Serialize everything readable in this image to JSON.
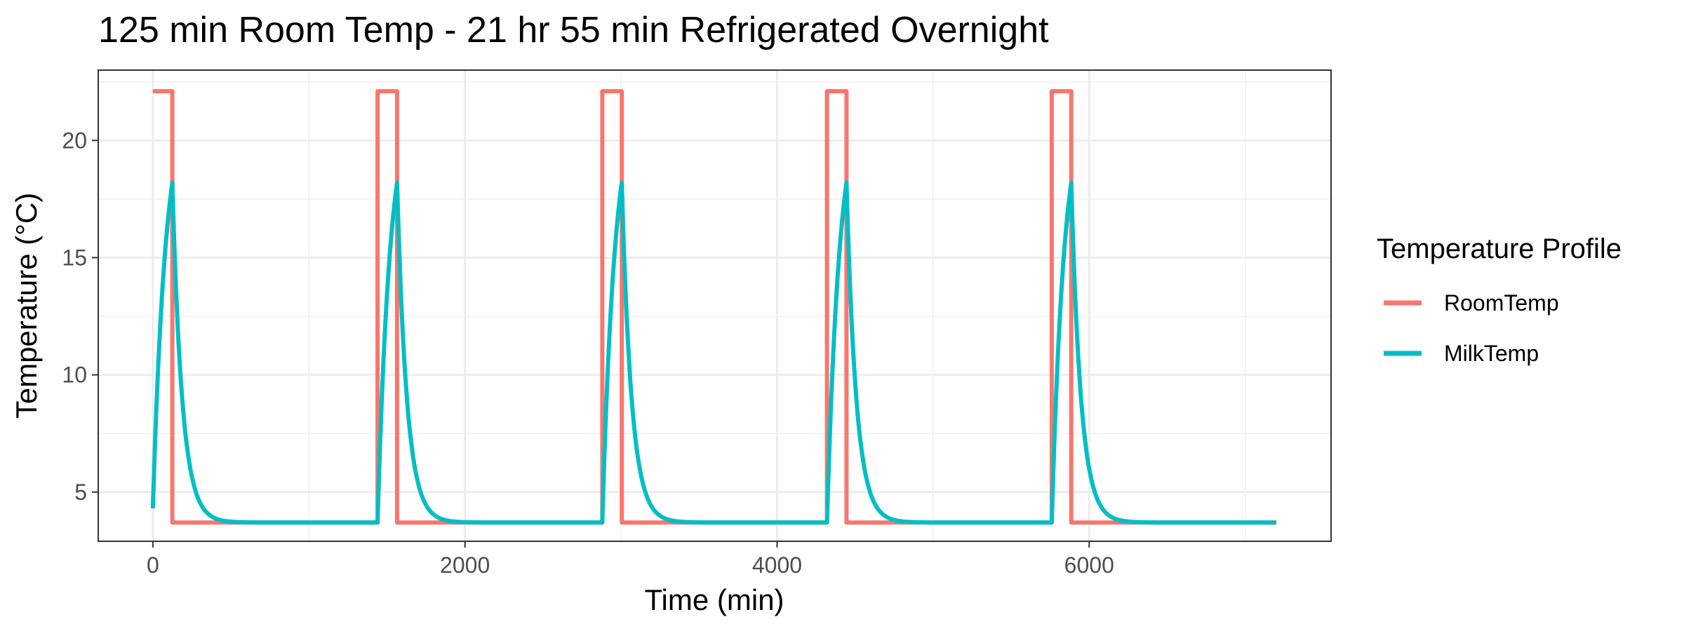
{
  "chart_data": {
    "type": "line",
    "title": "125 min Room Temp - 21 hr 55 min Refrigerated Overnight",
    "xlabel": "Time (min)",
    "ylabel": "Temperature (°C)",
    "xlim": [
      -350,
      7550
    ],
    "ylim": [
      2.9,
      23.0
    ],
    "x_ticks": [
      0,
      2000,
      4000,
      6000
    ],
    "x_minor_ticks": [
      1000,
      3000,
      5000,
      7000
    ],
    "y_ticks": [
      5,
      10,
      15,
      20
    ],
    "y_minor_ticks": [
      7.5,
      12.5,
      17.5,
      22.5
    ],
    "x_tick_labels": [
      "0",
      "2000",
      "4000",
      "6000"
    ],
    "y_tick_labels": [
      "5",
      "10",
      "15",
      "20"
    ],
    "grid": true,
    "legend": {
      "title": "Temperature Profile",
      "position": "right"
    },
    "cycle_minutes": 1440,
    "room_minutes": 125,
    "cycles": 5,
    "x_end": 7200,
    "room_level": 22.1,
    "fridge_level": 3.7,
    "milk_start": 4.3,
    "milk_peak": 18.2,
    "series": [
      {
        "name": "RoomTemp",
        "color": "#F8766D"
      },
      {
        "name": "MilkTemp",
        "color": "#00BFC4"
      }
    ]
  }
}
